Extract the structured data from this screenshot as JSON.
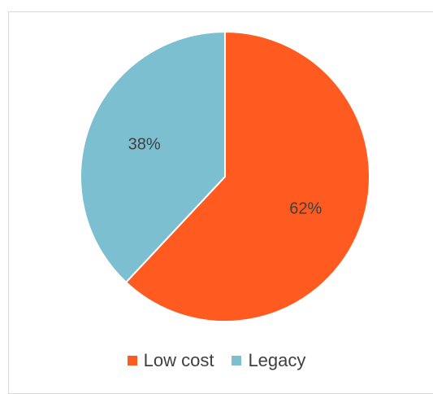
{
  "chart_data": {
    "type": "pie",
    "title": "",
    "slices": [
      {
        "name": "Low cost",
        "value": 62,
        "label": "62%",
        "color": "#FF5A1F"
      },
      {
        "name": "Legacy",
        "value": 38,
        "label": "38%",
        "color": "#7BBFD0"
      }
    ],
    "legend_position": "bottom",
    "start_angle": "12 o'clock, clockwise"
  }
}
